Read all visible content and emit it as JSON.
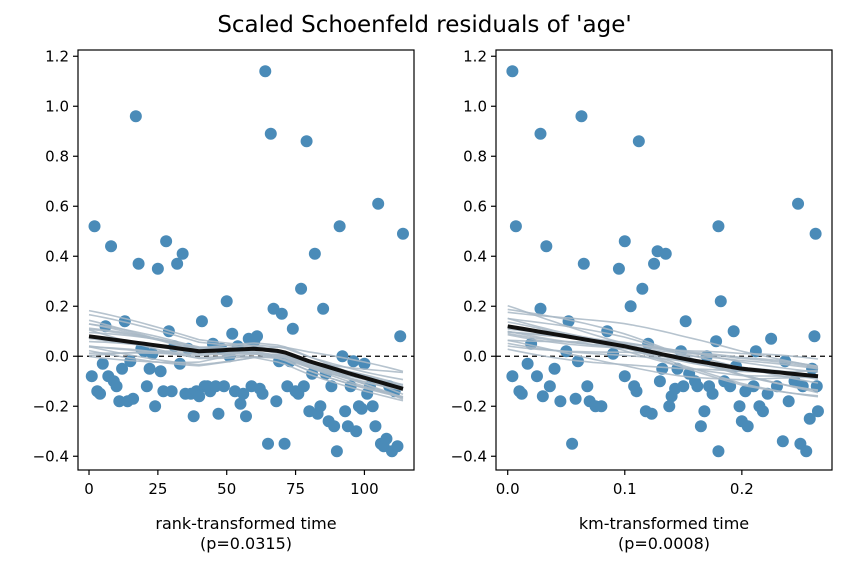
{
  "figure": {
    "title": "Scaled Schoenfeld residuals of 'age'"
  },
  "colors": {
    "points": "#4a8bb8",
    "trend": "#111111",
    "bootstrap": "#a9b8c6",
    "zero_line": "#000000"
  },
  "chart_data": [
    {
      "type": "scatter",
      "panel": "left",
      "title": "",
      "xlabel": "rank-transformed time",
      "xlabel_note": "(p=0.0315)",
      "ylabel": "",
      "xlim": [
        -4,
        118
      ],
      "ylim": [
        -0.455,
        1.225
      ],
      "xticks": [
        0,
        25,
        50,
        75,
        100
      ],
      "yticks": [
        -0.4,
        -0.2,
        0.0,
        0.2,
        0.4,
        0.6,
        0.8,
        1.0,
        1.2
      ],
      "ytick_labels": [
        "−0.4",
        "−0.2",
        "0.0",
        "0.2",
        "0.4",
        "0.6",
        "0.8",
        "1.0",
        "1.2"
      ],
      "reference_line": {
        "y": 0,
        "style": "dashed"
      },
      "grid": false,
      "points": [
        [
          1,
          -0.08
        ],
        [
          2,
          0.52
        ],
        [
          3,
          -0.14
        ],
        [
          4,
          -0.15
        ],
        [
          5,
          -0.03
        ],
        [
          6,
          0.12
        ],
        [
          7,
          -0.08
        ],
        [
          8,
          0.44
        ],
        [
          9,
          -0.1
        ],
        [
          10,
          -0.12
        ],
        [
          11,
          -0.18
        ],
        [
          12,
          -0.05
        ],
        [
          13,
          0.14
        ],
        [
          14,
          -0.18
        ],
        [
          15,
          -0.02
        ],
        [
          16,
          -0.17
        ],
        [
          17,
          0.96
        ],
        [
          18,
          0.37
        ],
        [
          19,
          0.03
        ],
        [
          20,
          0.02
        ],
        [
          21,
          -0.12
        ],
        [
          22,
          -0.05
        ],
        [
          23,
          0.01
        ],
        [
          24,
          -0.2
        ],
        [
          25,
          0.35
        ],
        [
          26,
          -0.06
        ],
        [
          27,
          -0.14
        ],
        [
          28,
          0.46
        ],
        [
          29,
          0.1
        ],
        [
          30,
          -0.14
        ],
        [
          31,
          0.04
        ],
        [
          32,
          0.37
        ],
        [
          33,
          -0.03
        ],
        [
          34,
          0.41
        ],
        [
          35,
          -0.15
        ],
        [
          36,
          0.03
        ],
        [
          37,
          -0.15
        ],
        [
          38,
          -0.24
        ],
        [
          39,
          -0.14
        ],
        [
          40,
          -0.16
        ],
        [
          41,
          0.14
        ],
        [
          42,
          -0.12
        ],
        [
          43,
          -0.12
        ],
        [
          44,
          -0.14
        ],
        [
          45,
          0.05
        ],
        [
          46,
          -0.12
        ],
        [
          47,
          -0.23
        ],
        [
          48,
          0.03
        ],
        [
          49,
          -0.12
        ],
        [
          50,
          0.22
        ],
        [
          51,
          0.0
        ],
        [
          52,
          0.09
        ],
        [
          53,
          -0.14
        ],
        [
          54,
          0.04
        ],
        [
          55,
          -0.19
        ],
        [
          56,
          -0.15
        ],
        [
          57,
          -0.24
        ],
        [
          58,
          0.07
        ],
        [
          59,
          -0.12
        ],
        [
          60,
          0.06
        ],
        [
          61,
          0.08
        ],
        [
          62,
          -0.13
        ],
        [
          63,
          -0.15
        ],
        [
          64,
          1.14
        ],
        [
          65,
          -0.35
        ],
        [
          66,
          0.89
        ],
        [
          67,
          0.19
        ],
        [
          68,
          -0.18
        ],
        [
          69,
          -0.02
        ],
        [
          70,
          0.17
        ],
        [
          71,
          -0.35
        ],
        [
          72,
          -0.12
        ],
        [
          73,
          -0.02
        ],
        [
          74,
          0.11
        ],
        [
          75,
          -0.14
        ],
        [
          76,
          -0.15
        ],
        [
          77,
          0.27
        ],
        [
          78,
          -0.12
        ],
        [
          79,
          0.86
        ],
        [
          80,
          -0.22
        ],
        [
          81,
          -0.07
        ],
        [
          82,
          0.41
        ],
        [
          83,
          -0.23
        ],
        [
          84,
          -0.2
        ],
        [
          85,
          0.19
        ],
        [
          86,
          -0.07
        ],
        [
          87,
          -0.26
        ],
        [
          88,
          -0.12
        ],
        [
          89,
          -0.28
        ],
        [
          90,
          -0.38
        ],
        [
          91,
          0.52
        ],
        [
          92,
          0.0
        ],
        [
          93,
          -0.22
        ],
        [
          94,
          -0.28
        ],
        [
          95,
          -0.12
        ],
        [
          96,
          -0.02
        ],
        [
          97,
          -0.3
        ],
        [
          98,
          -0.2
        ],
        [
          99,
          -0.21
        ],
        [
          100,
          -0.03
        ],
        [
          101,
          -0.15
        ],
        [
          102,
          -0.12
        ],
        [
          103,
          -0.2
        ],
        [
          104,
          -0.28
        ],
        [
          105,
          0.61
        ],
        [
          106,
          -0.35
        ],
        [
          107,
          -0.36
        ],
        [
          108,
          -0.33
        ],
        [
          109,
          -0.12
        ],
        [
          110,
          -0.38
        ],
        [
          111,
          -0.14
        ],
        [
          112,
          -0.36
        ],
        [
          113,
          0.08
        ],
        [
          114,
          0.49
        ]
      ],
      "trend": {
        "x": [
          0,
          20,
          40,
          60,
          70,
          80,
          95,
          114
        ],
        "y": [
          0.08,
          0.05,
          0.02,
          0.03,
          0.02,
          -0.02,
          -0.07,
          -0.13
        ]
      }
    },
    {
      "type": "scatter",
      "panel": "right",
      "title": "",
      "xlabel": "km-transformed time",
      "xlabel_note": "(p=0.0008)",
      "ylabel": "",
      "xlim": [
        -0.01,
        0.277
      ],
      "ylim": [
        -0.455,
        1.225
      ],
      "xticks": [
        0.0,
        0.1,
        0.2
      ],
      "xtick_labels": [
        "0.0",
        "0.1",
        "0.2"
      ],
      "yticks": [
        -0.4,
        -0.2,
        0.0,
        0.2,
        0.4,
        0.6,
        0.8,
        1.0,
        1.2
      ],
      "ytick_labels": [
        "−0.4",
        "−0.2",
        "0.0",
        "0.2",
        "0.4",
        "0.6",
        "0.8",
        "1.0",
        "1.2"
      ],
      "reference_line": {
        "y": 0,
        "style": "dashed"
      },
      "grid": false,
      "points": [
        [
          0.004,
          1.14
        ],
        [
          0.004,
          -0.08
        ],
        [
          0.007,
          0.52
        ],
        [
          0.01,
          -0.14
        ],
        [
          0.012,
          -0.15
        ],
        [
          0.017,
          -0.03
        ],
        [
          0.02,
          0.05
        ],
        [
          0.025,
          -0.08
        ],
        [
          0.028,
          0.89
        ],
        [
          0.028,
          0.19
        ],
        [
          0.03,
          -0.16
        ],
        [
          0.033,
          0.44
        ],
        [
          0.036,
          -0.12
        ],
        [
          0.04,
          -0.05
        ],
        [
          0.045,
          -0.18
        ],
        [
          0.05,
          0.02
        ],
        [
          0.052,
          0.14
        ],
        [
          0.055,
          -0.35
        ],
        [
          0.058,
          -0.17
        ],
        [
          0.06,
          -0.02
        ],
        [
          0.063,
          0.96
        ],
        [
          0.065,
          0.37
        ],
        [
          0.068,
          -0.12
        ],
        [
          0.07,
          -0.18
        ],
        [
          0.075,
          -0.2
        ],
        [
          0.08,
          -0.2
        ],
        [
          0.085,
          0.1
        ],
        [
          0.09,
          0.01
        ],
        [
          0.095,
          0.35
        ],
        [
          0.1,
          0.46
        ],
        [
          0.1,
          -0.08
        ],
        [
          0.105,
          0.2
        ],
        [
          0.108,
          -0.12
        ],
        [
          0.11,
          -0.14
        ],
        [
          0.112,
          0.86
        ],
        [
          0.115,
          0.27
        ],
        [
          0.118,
          -0.22
        ],
        [
          0.12,
          0.05
        ],
        [
          0.123,
          -0.23
        ],
        [
          0.125,
          0.37
        ],
        [
          0.128,
          0.42
        ],
        [
          0.13,
          -0.1
        ],
        [
          0.132,
          -0.05
        ],
        [
          0.135,
          0.41
        ],
        [
          0.138,
          -0.2
        ],
        [
          0.14,
          -0.16
        ],
        [
          0.143,
          -0.13
        ],
        [
          0.145,
          -0.05
        ],
        [
          0.148,
          0.02
        ],
        [
          0.15,
          -0.12
        ],
        [
          0.152,
          0.14
        ],
        [
          0.155,
          -0.07
        ],
        [
          0.16,
          -0.1
        ],
        [
          0.162,
          -0.12
        ],
        [
          0.165,
          -0.28
        ],
        [
          0.168,
          -0.22
        ],
        [
          0.17,
          0.0
        ],
        [
          0.172,
          -0.12
        ],
        [
          0.175,
          -0.15
        ],
        [
          0.178,
          0.06
        ],
        [
          0.18,
          0.52
        ],
        [
          0.18,
          -0.38
        ],
        [
          0.182,
          0.22
        ],
        [
          0.185,
          -0.1
        ],
        [
          0.19,
          -0.12
        ],
        [
          0.193,
          0.1
        ],
        [
          0.195,
          -0.04
        ],
        [
          0.198,
          -0.2
        ],
        [
          0.2,
          -0.26
        ],
        [
          0.203,
          -0.14
        ],
        [
          0.205,
          -0.28
        ],
        [
          0.21,
          -0.12
        ],
        [
          0.212,
          0.02
        ],
        [
          0.215,
          -0.2
        ],
        [
          0.218,
          -0.22
        ],
        [
          0.222,
          -0.15
        ],
        [
          0.225,
          0.07
        ],
        [
          0.23,
          -0.12
        ],
        [
          0.235,
          -0.34
        ],
        [
          0.237,
          -0.02
        ],
        [
          0.24,
          -0.18
        ],
        [
          0.245,
          -0.1
        ],
        [
          0.248,
          0.61
        ],
        [
          0.25,
          -0.35
        ],
        [
          0.252,
          -0.12
        ],
        [
          0.255,
          -0.38
        ],
        [
          0.258,
          -0.25
        ],
        [
          0.26,
          -0.05
        ],
        [
          0.262,
          0.08
        ],
        [
          0.263,
          0.49
        ],
        [
          0.264,
          -0.12
        ],
        [
          0.265,
          -0.22
        ]
      ],
      "trend": {
        "x": [
          0.0,
          0.05,
          0.1,
          0.15,
          0.2,
          0.265
        ],
        "y": [
          0.12,
          0.08,
          0.04,
          -0.01,
          -0.05,
          -0.08
        ]
      }
    }
  ]
}
